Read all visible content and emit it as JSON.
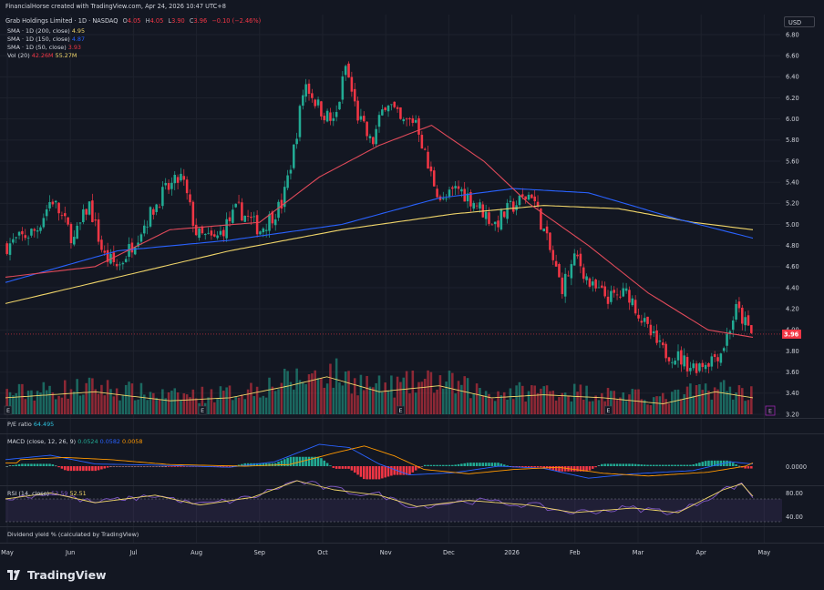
{
  "header": {
    "attribution": "FinancialHorse created with TradingView.com, Apr 24, 2026 10:47 UTC+8",
    "symbol": "Grab Holdings Limited · 1D · NASDAQ",
    "o_label": "O",
    "o_value": "4.05",
    "h_label": "H",
    "h_value": "4.05",
    "l_label": "L",
    "l_value": "3.90",
    "c_label": "C",
    "c_value": "3.96",
    "change": "−0.10 (−2.46%)",
    "currency": "USD"
  },
  "legend": {
    "sma200": {
      "label": "SMA · 1D (200, close)",
      "value": "4.95"
    },
    "sma150": {
      "label": "SMA · 1D (150, close)",
      "value": "4.87"
    },
    "sma50": {
      "label": "SMA · 1D (50, close)",
      "value": "3.93"
    },
    "vol": {
      "label": "Vol (20)",
      "value1": "42.26M",
      "value2": "55.27M"
    }
  },
  "pe": {
    "label": "P/E ratio",
    "value": "64.495"
  },
  "macd": {
    "label": "MACD (close, 12, 26, 9)",
    "v1": "0.0524",
    "v2": "0.0582",
    "v3": "0.0058",
    "axis_label": "0.0000"
  },
  "rsi": {
    "label": "RSI (14, close)",
    "v1": "53.59",
    "v2": "52.51",
    "axis_labels": [
      "80.00",
      "40.00"
    ]
  },
  "dividend": {
    "label": "Dividend yield % (calculated by TradingView)"
  },
  "brand": {
    "name": "TradingView"
  },
  "colors": {
    "background": "#131722",
    "up": "#22ab94",
    "down": "#f23645",
    "sma200": "#f0d56a",
    "sma150": "#2962ff",
    "sma50": "#e04a5a",
    "vol_ma": "#f0d56a",
    "macd_line": "#2962ff",
    "signal_line": "#ff9800",
    "rsi_line": "#7e57c2",
    "rsi_ma": "#f0d56a"
  },
  "chart_data": {
    "type": "candlestick",
    "price_axis": {
      "ticks": [
        6.8,
        6.6,
        6.4,
        6.2,
        6.0,
        5.8,
        5.6,
        5.4,
        5.2,
        5.0,
        4.8,
        4.6,
        4.4,
        4.2,
        4.0,
        3.8,
        3.6,
        3.4,
        3.2
      ],
      "range": [
        3.2,
        6.8
      ]
    },
    "last_price_label": "3.96",
    "x_ticks": [
      "May",
      "Jun",
      "Jul",
      "Aug",
      "Sep",
      "Oct",
      "Nov",
      "Dec",
      "2026",
      "Feb",
      "Mar",
      "Apr",
      "May"
    ],
    "earnings_marker": "E",
    "close_path": [
      {
        "x": 0,
        "y": 4.8
      },
      {
        "x": 0.04,
        "y": 4.95
      },
      {
        "x": 0.06,
        "y": 5.25
      },
      {
        "x": 0.09,
        "y": 4.85
      },
      {
        "x": 0.11,
        "y": 5.2
      },
      {
        "x": 0.13,
        "y": 4.7
      },
      {
        "x": 0.15,
        "y": 4.6
      },
      {
        "x": 0.18,
        "y": 4.95
      },
      {
        "x": 0.21,
        "y": 5.3
      },
      {
        "x": 0.235,
        "y": 5.45
      },
      {
        "x": 0.255,
        "y": 4.9
      },
      {
        "x": 0.28,
        "y": 4.85
      },
      {
        "x": 0.31,
        "y": 5.15
      },
      {
        "x": 0.34,
        "y": 4.95
      },
      {
        "x": 0.37,
        "y": 5.2
      },
      {
        "x": 0.385,
        "y": 5.7
      },
      {
        "x": 0.4,
        "y": 6.35
      },
      {
        "x": 0.42,
        "y": 6.1
      },
      {
        "x": 0.44,
        "y": 5.95
      },
      {
        "x": 0.455,
        "y": 6.5
      },
      {
        "x": 0.47,
        "y": 6.05
      },
      {
        "x": 0.49,
        "y": 5.75
      },
      {
        "x": 0.51,
        "y": 6.2
      },
      {
        "x": 0.53,
        "y": 5.95
      },
      {
        "x": 0.55,
        "y": 6.0
      },
      {
        "x": 0.565,
        "y": 5.55
      },
      {
        "x": 0.585,
        "y": 5.2
      },
      {
        "x": 0.605,
        "y": 5.35
      },
      {
        "x": 0.63,
        "y": 5.2
      },
      {
        "x": 0.655,
        "y": 5.0
      },
      {
        "x": 0.675,
        "y": 5.15
      },
      {
        "x": 0.705,
        "y": 5.3
      },
      {
        "x": 0.725,
        "y": 4.85
      },
      {
        "x": 0.745,
        "y": 4.4
      },
      {
        "x": 0.765,
        "y": 4.7
      },
      {
        "x": 0.785,
        "y": 4.4
      },
      {
        "x": 0.81,
        "y": 4.3
      },
      {
        "x": 0.835,
        "y": 4.35
      },
      {
        "x": 0.86,
        "y": 4.0
      },
      {
        "x": 0.88,
        "y": 3.8
      },
      {
        "x": 0.9,
        "y": 3.75
      },
      {
        "x": 0.92,
        "y": 3.65
      },
      {
        "x": 0.94,
        "y": 3.7
      },
      {
        "x": 0.96,
        "y": 3.8
      },
      {
        "x": 0.98,
        "y": 4.2
      },
      {
        "x": 1.0,
        "y": 3.96
      }
    ],
    "sma200_path": [
      {
        "x": 0,
        "y": 4.25
      },
      {
        "x": 0.15,
        "y": 4.5
      },
      {
        "x": 0.3,
        "y": 4.75
      },
      {
        "x": 0.45,
        "y": 4.95
      },
      {
        "x": 0.6,
        "y": 5.1
      },
      {
        "x": 0.72,
        "y": 5.18
      },
      {
        "x": 0.82,
        "y": 5.15
      },
      {
        "x": 0.92,
        "y": 5.02
      },
      {
        "x": 1.0,
        "y": 4.95
      }
    ],
    "sma150_path": [
      {
        "x": 0,
        "y": 4.45
      },
      {
        "x": 0.15,
        "y": 4.75
      },
      {
        "x": 0.3,
        "y": 4.85
      },
      {
        "x": 0.45,
        "y": 5.0
      },
      {
        "x": 0.58,
        "y": 5.25
      },
      {
        "x": 0.68,
        "y": 5.34
      },
      {
        "x": 0.78,
        "y": 5.3
      },
      {
        "x": 0.9,
        "y": 5.05
      },
      {
        "x": 1.0,
        "y": 4.87
      }
    ],
    "sma50_path": [
      {
        "x": 0,
        "y": 4.5
      },
      {
        "x": 0.12,
        "y": 4.6
      },
      {
        "x": 0.22,
        "y": 4.95
      },
      {
        "x": 0.34,
        "y": 5.02
      },
      {
        "x": 0.42,
        "y": 5.45
      },
      {
        "x": 0.5,
        "y": 5.75
      },
      {
        "x": 0.57,
        "y": 5.94
      },
      {
        "x": 0.64,
        "y": 5.6
      },
      {
        "x": 0.7,
        "y": 5.2
      },
      {
        "x": 0.78,
        "y": 4.8
      },
      {
        "x": 0.86,
        "y": 4.35
      },
      {
        "x": 0.94,
        "y": 4.0
      },
      {
        "x": 1.0,
        "y": 3.93
      }
    ],
    "volume_profile": [
      {
        "x": 0,
        "y": 0.35
      },
      {
        "x": 0.12,
        "y": 0.45
      },
      {
        "x": 0.22,
        "y": 0.3
      },
      {
        "x": 0.3,
        "y": 0.35
      },
      {
        "x": 0.38,
        "y": 0.55
      },
      {
        "x": 0.43,
        "y": 0.7
      },
      {
        "x": 0.5,
        "y": 0.45
      },
      {
        "x": 0.58,
        "y": 0.55
      },
      {
        "x": 0.65,
        "y": 0.35
      },
      {
        "x": 0.72,
        "y": 0.4
      },
      {
        "x": 0.8,
        "y": 0.35
      },
      {
        "x": 0.88,
        "y": 0.25
      },
      {
        "x": 0.95,
        "y": 0.45
      },
      {
        "x": 1.0,
        "y": 0.35
      }
    ],
    "macd_path": [
      {
        "x": 0,
        "y": 0.3
      },
      {
        "x": 0.06,
        "y": 0.5
      },
      {
        "x": 0.12,
        "y": 0.1
      },
      {
        "x": 0.2,
        "y": 0.05
      },
      {
        "x": 0.3,
        "y": -0.05
      },
      {
        "x": 0.36,
        "y": 0.2
      },
      {
        "x": 0.42,
        "y": 1.0
      },
      {
        "x": 0.46,
        "y": 0.85
      },
      {
        "x": 0.5,
        "y": 0.1
      },
      {
        "x": 0.54,
        "y": -0.4
      },
      {
        "x": 0.6,
        "y": -0.3
      },
      {
        "x": 0.66,
        "y": 0.0
      },
      {
        "x": 0.72,
        "y": -0.1
      },
      {
        "x": 0.78,
        "y": -0.55
      },
      {
        "x": 0.84,
        "y": -0.35
      },
      {
        "x": 0.92,
        "y": -0.2
      },
      {
        "x": 0.97,
        "y": 0.2
      },
      {
        "x": 1.0,
        "y": 0.1
      }
    ],
    "rsi_path": [
      {
        "x": 0,
        "y": 50
      },
      {
        "x": 0.06,
        "y": 58
      },
      {
        "x": 0.12,
        "y": 45
      },
      {
        "x": 0.2,
        "y": 55
      },
      {
        "x": 0.26,
        "y": 42
      },
      {
        "x": 0.33,
        "y": 52
      },
      {
        "x": 0.39,
        "y": 74
      },
      {
        "x": 0.44,
        "y": 62
      },
      {
        "x": 0.5,
        "y": 55
      },
      {
        "x": 0.55,
        "y": 40
      },
      {
        "x": 0.62,
        "y": 48
      },
      {
        "x": 0.7,
        "y": 42
      },
      {
        "x": 0.76,
        "y": 32
      },
      {
        "x": 0.84,
        "y": 38
      },
      {
        "x": 0.9,
        "y": 32
      },
      {
        "x": 0.96,
        "y": 62
      },
      {
        "x": 0.985,
        "y": 70
      },
      {
        "x": 1.0,
        "y": 53.59
      }
    ],
    "rsi_range": [
      20,
      80
    ]
  }
}
